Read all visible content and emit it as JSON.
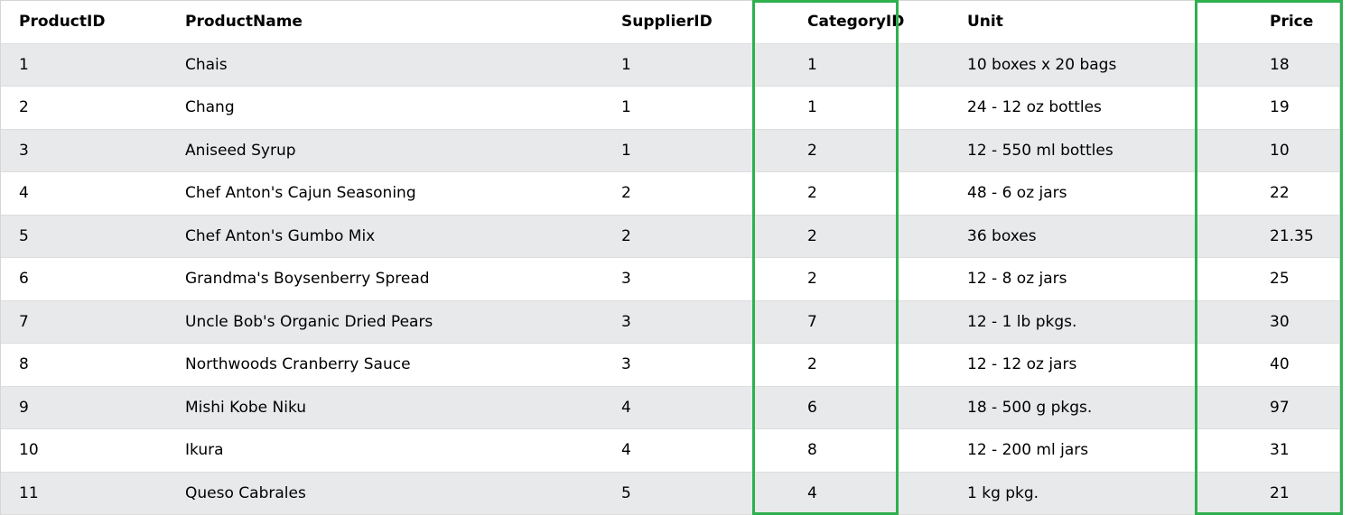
{
  "table": {
    "headers": [
      "ProductID",
      "ProductName",
      "SupplierID",
      "CategoryID",
      "Unit",
      "Price"
    ],
    "rows": [
      [
        "1",
        "Chais",
        "1",
        "1",
        "10 boxes x 20 bags",
        "18"
      ],
      [
        "2",
        "Chang",
        "1",
        "1",
        "24 - 12 oz bottles",
        "19"
      ],
      [
        "3",
        "Aniseed Syrup",
        "1",
        "2",
        "12 - 550 ml bottles",
        "10"
      ],
      [
        "4",
        "Chef Anton's Cajun Seasoning",
        "2",
        "2",
        "48 - 6 oz jars",
        "22"
      ],
      [
        "5",
        "Chef Anton's Gumbo Mix",
        "2",
        "2",
        "36 boxes",
        "21.35"
      ],
      [
        "6",
        "Grandma's Boysenberry Spread",
        "3",
        "2",
        "12 - 8 oz jars",
        "25"
      ],
      [
        "7",
        "Uncle Bob's Organic Dried Pears",
        "3",
        "7",
        "12 - 1 lb pkgs.",
        "30"
      ],
      [
        "8",
        "Northwoods Cranberry Sauce",
        "3",
        "2",
        "12 - 12 oz jars",
        "40"
      ],
      [
        "9",
        "Mishi Kobe Niku",
        "4",
        "6",
        "18 - 500 g pkgs.",
        "97"
      ],
      [
        "10",
        "Ikura",
        "4",
        "8",
        "12 - 200 ml jars",
        "31"
      ],
      [
        "11",
        "Queso Cabrales",
        "5",
        "4",
        "1 kg pkg.",
        "21"
      ]
    ]
  },
  "highlighted_columns": [
    "CategoryID",
    "Price"
  ],
  "colors": {
    "highlight_border": "#2eb04f",
    "stripe_row": "#e7e9eb",
    "plain_row": "#ffffff"
  }
}
